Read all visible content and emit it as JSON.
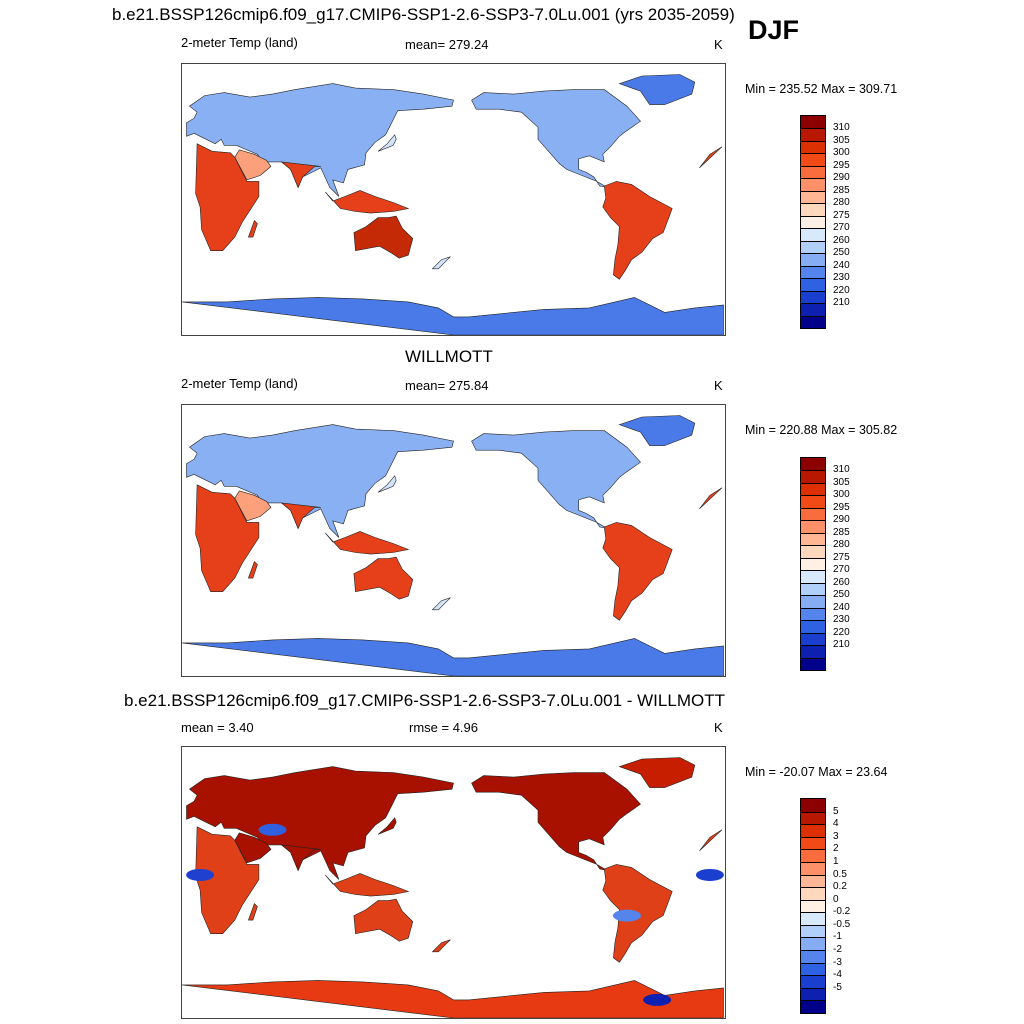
{
  "chart_data": [
    {
      "type": "heatmap",
      "title": "b.e21.BSSP126cmip6.f09_g17.CMIP6-SSP1-2.6-SSP3-7.0Lu.001 (yrs 2035-2059)",
      "season": "DJF",
      "variable_label": "2-meter Temp (land)",
      "mean_label": "mean= 279.24",
      "units": "K",
      "range_label": "Min = 235.52 Max = 309.71",
      "min": 235.52,
      "max": 309.71,
      "colorbar_levels": [
        "310",
        "305",
        "300",
        "295",
        "290",
        "285",
        "280",
        "275",
        "270",
        "260",
        "250",
        "240",
        "230",
        "220",
        "210"
      ],
      "colorbar_colors": [
        "#8c0000",
        "#b81700",
        "#dc3000",
        "#f24a17",
        "#f86c3e",
        "#fc9069",
        "#feb694",
        "#fed8bd",
        "#fef0e4",
        "#d8e9fc",
        "#b0d0fa",
        "#86acf4",
        "#5585ec",
        "#2f62e2",
        "#1a3fcf",
        "#0d20b0",
        "#00008a"
      ]
    },
    {
      "type": "heatmap",
      "title": "WILLMOTT",
      "variable_label": "2-meter Temp (land)",
      "mean_label": "mean= 275.84",
      "units": "K",
      "range_label": "Min = 220.88 Max = 305.82",
      "min": 220.88,
      "max": 305.82,
      "colorbar_levels": [
        "310",
        "305",
        "300",
        "295",
        "290",
        "285",
        "280",
        "275",
        "270",
        "260",
        "250",
        "240",
        "230",
        "220",
        "210"
      ],
      "colorbar_colors": [
        "#8c0000",
        "#b81700",
        "#dc3000",
        "#f24a17",
        "#f86c3e",
        "#fc9069",
        "#feb694",
        "#fed8bd",
        "#fef0e4",
        "#d8e9fc",
        "#b0d0fa",
        "#86acf4",
        "#5585ec",
        "#2f62e2",
        "#1a3fcf",
        "#0d20b0",
        "#00008a"
      ]
    },
    {
      "type": "heatmap",
      "title": "b.e21.BSSP126cmip6.f09_g17.CMIP6-SSP1-2.6-SSP3-7.0Lu.001 - WILLMOTT",
      "mean_label": "mean =   3.40",
      "rmse_label": "rmse =   4.96",
      "units": "K",
      "range_label": "Min = -20.07 Max =  23.64",
      "min": -20.07,
      "max": 23.64,
      "mean": 3.4,
      "rmse": 4.96,
      "colorbar_levels": [
        "5",
        "4",
        "3",
        "2",
        "1",
        "0.5",
        "0.2",
        "0",
        "-0.2",
        "-0.5",
        "-1",
        "-2",
        "-3",
        "-4",
        "-5"
      ],
      "colorbar_colors": [
        "#8c0000",
        "#b81700",
        "#dc3000",
        "#f24a17",
        "#f86c3e",
        "#fc9069",
        "#feb694",
        "#fed8bd",
        "#fef0e4",
        "#d8e9fc",
        "#b0d0fa",
        "#86acf4",
        "#5585ec",
        "#2f62e2",
        "#1a3fcf",
        "#0d20b0",
        "#00008a"
      ]
    }
  ]
}
